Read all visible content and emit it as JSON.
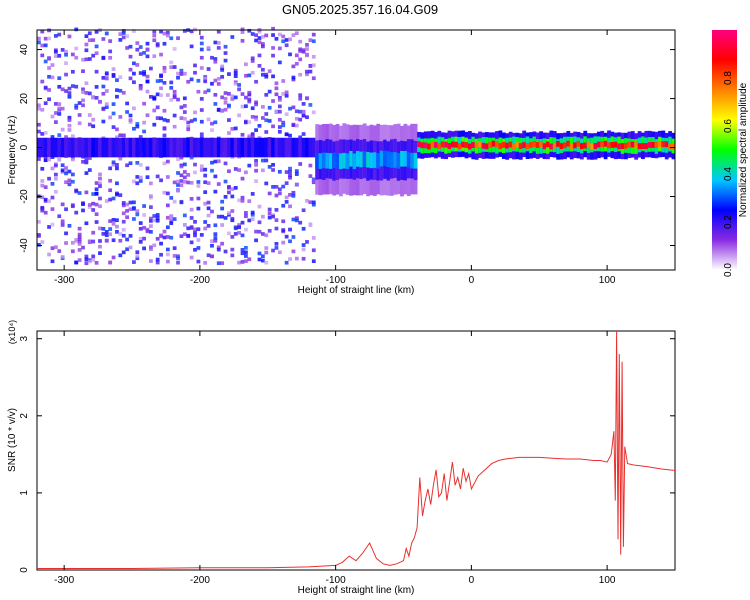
{
  "title": "GN05.2025.357.16.04.G09",
  "chart_data": [
    {
      "type": "heatmap",
      "xlabel": "Height of straight line (km)",
      "ylabel": "Frequency (Hz)",
      "xlim": [
        -320,
        150
      ],
      "ylim": [
        -50,
        48
      ],
      "xticks": [
        -300,
        -200,
        -100,
        0,
        100
      ],
      "yticks": [
        -40,
        -20,
        0,
        20,
        40
      ],
      "colorbar": {
        "label": "Normalized spectral amplitude",
        "range": [
          0.0,
          1.0
        ],
        "ticks": [
          "0.0",
          "0.2",
          "0.4",
          "0.6",
          "0.8"
        ],
        "colors": [
          "#ffffff",
          "#8a2be2",
          "#0000ff",
          "#00c8ff",
          "#00ff00",
          "#ffff00",
          "#ff8000",
          "#ff0000",
          "#ff0080"
        ]
      },
      "regions": [
        {
          "x": [
            -320,
            -115
          ],
          "freq_center": 0,
          "spread": 48,
          "amplitude": 0.15
        },
        {
          "x": [
            -115,
            -40
          ],
          "freq_center": -5,
          "spread": 8,
          "amplitude": 0.35
        },
        {
          "x": [
            -40,
            150
          ],
          "freq_center": 1,
          "spread": 3,
          "amplitude": 0.85
        }
      ]
    },
    {
      "type": "line",
      "xlabel": "Height of straight line (km)",
      "ylabel": "SNR (10 * v/v)",
      "multiplier": "(x10⁴)",
      "xlim": [
        -320,
        150
      ],
      "ylim": [
        0,
        3.1
      ],
      "xticks": [
        -300,
        -200,
        -100,
        0,
        100
      ],
      "yticks": [
        0,
        1,
        2,
        3
      ],
      "series": [
        {
          "color": "#e8312f",
          "x": [
            -320,
            -250,
            -200,
            -150,
            -120,
            -110,
            -100,
            -95,
            -90,
            -85,
            -80,
            -75,
            -70,
            -65,
            -60,
            -55,
            -50,
            -48,
            -46,
            -44,
            -42,
            -40,
            -38,
            -36,
            -34,
            -32,
            -30,
            -28,
            -26,
            -24,
            -22,
            -20,
            -18,
            -16,
            -14,
            -12,
            -10,
            -8,
            -6,
            -4,
            -2,
            0,
            5,
            10,
            15,
            20,
            25,
            30,
            35,
            40,
            50,
            60,
            70,
            80,
            90,
            95,
            100,
            103,
            105,
            106,
            107,
            108,
            109,
            110,
            111,
            112,
            113,
            115,
            120,
            130,
            140,
            150
          ],
          "y": [
            0.02,
            0.02,
            0.03,
            0.03,
            0.04,
            0.05,
            0.06,
            0.1,
            0.18,
            0.12,
            0.22,
            0.35,
            0.15,
            0.08,
            0.06,
            0.08,
            0.12,
            0.28,
            0.18,
            0.35,
            0.42,
            0.55,
            1.2,
            0.7,
            0.9,
            1.05,
            0.85,
            1.1,
            1.3,
            0.95,
            1.0,
            1.25,
            0.9,
            1.15,
            1.4,
            1.1,
            1.2,
            1.05,
            1.32,
            1.15,
            1.25,
            1.05,
            1.22,
            1.3,
            1.38,
            1.42,
            1.44,
            1.45,
            1.46,
            1.46,
            1.46,
            1.45,
            1.44,
            1.44,
            1.42,
            1.42,
            1.4,
            1.5,
            1.8,
            0.9,
            3.1,
            0.4,
            2.8,
            0.2,
            2.7,
            0.3,
            1.6,
            1.38,
            1.36,
            1.34,
            1.31,
            1.29
          ]
        }
      ]
    }
  ]
}
